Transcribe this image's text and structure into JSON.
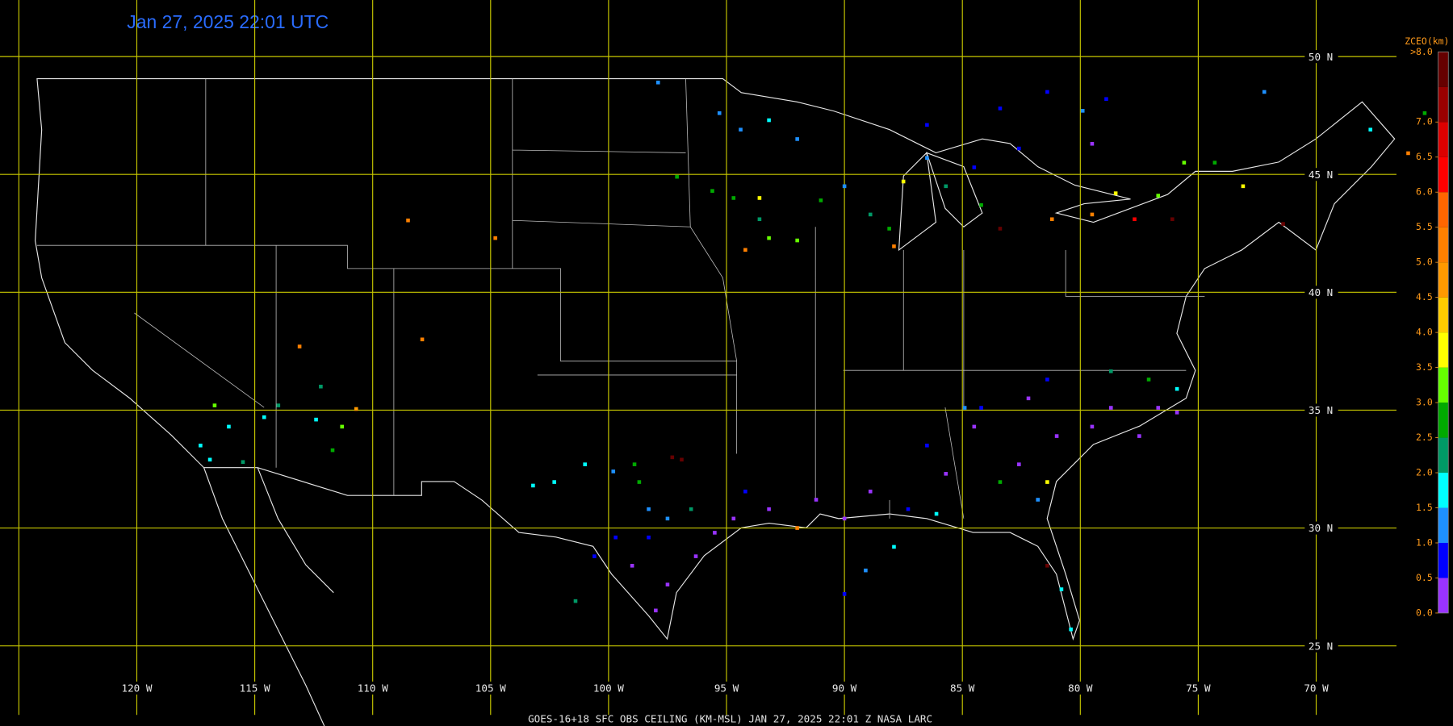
{
  "title": "Jan 27, 2025 22:01 UTC",
  "caption": "GOES-16+18  SFC OBS CEILING (KM-MSL)   JAN 27, 2025 22:01 Z   NASA LARC",
  "map": {
    "xlim": [
      -125.8,
      -64.2
    ],
    "ylim": [
      21.6,
      52.4
    ],
    "lon_lines": [
      {
        "value": -125,
        "label": null
      },
      {
        "value": -120,
        "label": "120 W"
      },
      {
        "value": -115,
        "label": "115 W"
      },
      {
        "value": -110,
        "label": "110 W"
      },
      {
        "value": -105,
        "label": "105 W"
      },
      {
        "value": -100,
        "label": "100 W"
      },
      {
        "value": -95,
        "label": "95 W"
      },
      {
        "value": -90,
        "label": "90 W"
      },
      {
        "value": -85,
        "label": "85 W"
      },
      {
        "value": -80,
        "label": "80 W"
      },
      {
        "value": -75,
        "label": "75 W"
      },
      {
        "value": -70,
        "label": "70 W"
      }
    ],
    "lat_lines": [
      {
        "value": 50,
        "label": "50 N"
      },
      {
        "value": 45,
        "label": "45 N"
      },
      {
        "value": 40,
        "label": "40 N"
      },
      {
        "value": 35,
        "label": "35 N"
      },
      {
        "value": 30,
        "label": "30 N"
      },
      {
        "value": 25,
        "label": "25 N"
      }
    ],
    "grid_color": "#c8c800"
  },
  "colorbar": {
    "title": "ZCEO(km)",
    "top_label": ">8.0",
    "lim": [
      0,
      8
    ],
    "bins": [
      0,
      0.5,
      1,
      1.5,
      2,
      2.5,
      3,
      3.5,
      4,
      4.5,
      5,
      5.5,
      6,
      6.5,
      7,
      7.5,
      8
    ],
    "colors": [
      "#9933ff",
      "#0000ff",
      "#1e90ff",
      "#00ffff",
      "#009966",
      "#00aa00",
      "#66ff00",
      "#ffff00",
      "#ffcc00",
      "#ff9900",
      "#ff8000",
      "#ff6600",
      "#ff0000",
      "#dd0000",
      "#990000",
      "#660000"
    ],
    "ticks": [
      {
        "value": 0,
        "label": "0.0"
      },
      {
        "value": 0.5,
        "label": "0.5"
      },
      {
        "value": 1,
        "label": "1.0"
      },
      {
        "value": 1.5,
        "label": "1.5"
      },
      {
        "value": 2,
        "label": "2.0"
      },
      {
        "value": 2.5,
        "label": "2.5"
      },
      {
        "value": 3,
        "label": "3.0"
      },
      {
        "value": 3.5,
        "label": "3.5"
      },
      {
        "value": 4,
        "label": "4.0"
      },
      {
        "value": 4.5,
        "label": "4.5"
      },
      {
        "value": 5,
        "label": "5.0"
      },
      {
        "value": 5.5,
        "label": "5.5"
      },
      {
        "value": 6,
        "label": "6.0"
      },
      {
        "value": 6.5,
        "label": "6.5"
      },
      {
        "value": 7,
        "label": "7.0"
      }
    ]
  },
  "stations": [
    [
      -108.5,
      43.05,
      5.2
    ],
    [
      -104.8,
      42.3,
      5.2
    ],
    [
      -113.1,
      37.7,
      5.2
    ],
    [
      -107.9,
      38.0,
      5.2
    ],
    [
      -110.7,
      35.05,
      4.8
    ],
    [
      -116.7,
      35.2,
      3.2
    ],
    [
      -117.3,
      33.5,
      1.8
    ],
    [
      -116.1,
      34.3,
      1.8
    ],
    [
      -116.9,
      32.9,
      1.8
    ],
    [
      -115.5,
      32.8,
      2.2
    ],
    [
      -112.2,
      36.0,
      2.2
    ],
    [
      -111.7,
      33.3,
      2.8
    ],
    [
      -112.4,
      34.6,
      1.8
    ],
    [
      -111.3,
      34.3,
      3.2
    ],
    [
      -114.0,
      35.2,
      2.2
    ],
    [
      -114.6,
      34.7,
      1.8
    ],
    [
      -102.3,
      31.95,
      1.8
    ],
    [
      -103.2,
      31.8,
      1.8
    ],
    [
      -101.0,
      32.7,
      1.8
    ],
    [
      -101.4,
      26.9,
      2.2
    ],
    [
      -99.8,
      32.4,
      1.3
    ],
    [
      -98.9,
      32.7,
      2.8
    ],
    [
      -98.7,
      31.95,
      2.8
    ],
    [
      -97.3,
      33.0,
      7.6
    ],
    [
      -96.9,
      32.9,
      7.6
    ],
    [
      -98.3,
      30.8,
      1.3
    ],
    [
      -96.5,
      30.8,
      2.2
    ],
    [
      -97.5,
      30.4,
      1.3
    ],
    [
      -99.7,
      29.6,
      0.8
    ],
    [
      -98.3,
      29.6,
      0.8
    ],
    [
      -100.6,
      28.8,
      0.8
    ],
    [
      -99.0,
      28.4,
      0.3
    ],
    [
      -97.5,
      27.6,
      0.3
    ],
    [
      -98.0,
      26.5,
      0.3
    ],
    [
      -96.3,
      28.8,
      0.3
    ],
    [
      -95.5,
      29.8,
      0.3
    ],
    [
      -94.7,
      30.4,
      0.3
    ],
    [
      -94.2,
      31.55,
      0.8
    ],
    [
      -93.2,
      30.8,
      0.3
    ],
    [
      -92.0,
      30.0,
      5.2
    ],
    [
      -91.2,
      31.2,
      0.3
    ],
    [
      -90.0,
      30.4,
      0.3
    ],
    [
      -88.9,
      31.55,
      0.3
    ],
    [
      -87.9,
      29.2,
      1.8
    ],
    [
      -87.3,
      30.8,
      0.8
    ],
    [
      -86.5,
      33.5,
      0.8
    ],
    [
      -85.7,
      32.3,
      0.3
    ],
    [
      -84.5,
      34.3,
      0.3
    ],
    [
      -83.4,
      31.95,
      2.8
    ],
    [
      -82.6,
      32.7,
      0.3
    ],
    [
      -81.8,
      31.2,
      1.3
    ],
    [
      -81.4,
      31.95,
      3.8
    ],
    [
      -81.0,
      33.9,
      0.3
    ],
    [
      -78.7,
      35.1,
      0.3
    ],
    [
      -76.7,
      35.1,
      0.3
    ],
    [
      -75.9,
      35.9,
      1.8
    ],
    [
      -78.7,
      36.65,
      2.2
    ],
    [
      -81.4,
      36.3,
      0.8
    ],
    [
      -84.2,
      35.1,
      0.8
    ],
    [
      -81.4,
      28.4,
      7.6
    ],
    [
      -80.8,
      27.4,
      1.8
    ],
    [
      -80.4,
      25.7,
      1.8
    ],
    [
      -90.0,
      27.2,
      0.8
    ],
    [
      -89.1,
      28.2,
      1.3
    ],
    [
      -86.1,
      30.6,
      1.8
    ],
    [
      -97.1,
      44.9,
      2.8
    ],
    [
      -95.6,
      44.3,
      2.8
    ],
    [
      -94.7,
      44.0,
      2.8
    ],
    [
      -93.6,
      44.0,
      3.8
    ],
    [
      -94.2,
      41.8,
      5.2
    ],
    [
      -93.2,
      42.3,
      3.2
    ],
    [
      -92.0,
      42.2,
      3.2
    ],
    [
      -93.6,
      43.1,
      2.2
    ],
    [
      -95.3,
      47.6,
      1.3
    ],
    [
      -94.4,
      46.9,
      1.3
    ],
    [
      -93.2,
      47.3,
      1.8
    ],
    [
      -92.0,
      46.5,
      1.3
    ],
    [
      -97.9,
      48.9,
      1.3
    ],
    [
      -91.0,
      43.9,
      2.8
    ],
    [
      -90.0,
      44.5,
      1.3
    ],
    [
      -88.9,
      43.3,
      2.2
    ],
    [
      -87.9,
      41.95,
      5.2
    ],
    [
      -88.1,
      42.7,
      2.8
    ],
    [
      -87.5,
      44.7,
      3.8
    ],
    [
      -86.5,
      45.7,
      1.3
    ],
    [
      -85.7,
      44.5,
      2.2
    ],
    [
      -84.5,
      45.3,
      0.8
    ],
    [
      -84.2,
      43.7,
      2.8
    ],
    [
      -82.6,
      46.1,
      0.8
    ],
    [
      -83.4,
      42.7,
      7.6
    ],
    [
      -81.2,
      43.1,
      5.2
    ],
    [
      -79.5,
      43.3,
      5.2
    ],
    [
      -78.5,
      44.2,
      3.8
    ],
    [
      -77.7,
      43.1,
      6.2
    ],
    [
      -76.1,
      43.1,
      7.6
    ],
    [
      -76.7,
      44.1,
      3.2
    ],
    [
      -75.6,
      45.5,
      3.2
    ],
    [
      -73.1,
      44.5,
      3.8
    ],
    [
      -71.4,
      42.9,
      7.6
    ],
    [
      -67.7,
      46.9,
      1.8
    ],
    [
      -66.1,
      45.9,
      5.2
    ],
    [
      -65.4,
      47.6,
      2.8
    ],
    [
      -81.4,
      48.5,
      0.8
    ],
    [
      -78.9,
      48.2,
      0.8
    ],
    [
      -72.2,
      48.5,
      1.3
    ],
    [
      -83.4,
      47.8,
      0.8
    ],
    [
      -86.5,
      47.1,
      0.8
    ],
    [
      -79.9,
      47.7,
      1.3
    ],
    [
      -79.5,
      46.3,
      0.3
    ],
    [
      -74.3,
      45.5,
      2.8
    ],
    [
      -84.9,
      35.1,
      1.3
    ],
    [
      -82.2,
      35.5,
      0.3
    ],
    [
      -79.5,
      34.3,
      0.3
    ],
    [
      -77.5,
      33.9,
      0.3
    ],
    [
      -77.1,
      36.3,
      2.8
    ],
    [
      -75.9,
      34.9,
      0.3
    ]
  ]
}
